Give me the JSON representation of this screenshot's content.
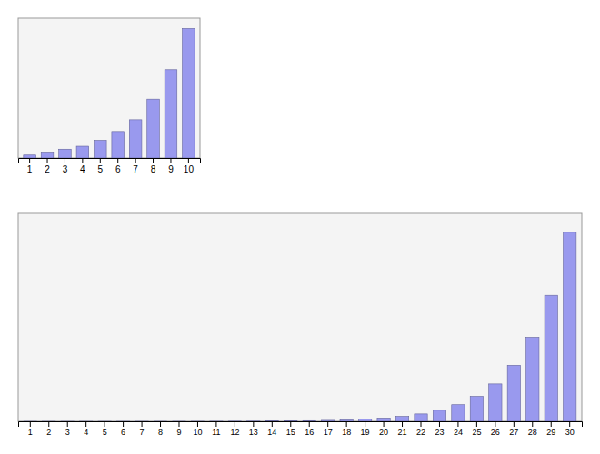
{
  "chart_data": [
    {
      "type": "bar",
      "categories": [
        "1",
        "2",
        "3",
        "4",
        "5",
        "6",
        "7",
        "8",
        "9",
        "10"
      ],
      "values": [
        1,
        2,
        3,
        4,
        6,
        9,
        13,
        20,
        30,
        44
      ],
      "color": "#9999ee",
      "ylim": [
        0,
        47.52
      ],
      "grid": false,
      "tick_labels": "x"
    },
    {
      "type": "bar",
      "categories": [
        "1",
        "2",
        "3",
        "4",
        "5",
        "6",
        "7",
        "8",
        "9",
        "10",
        "11",
        "12",
        "13",
        "14",
        "15",
        "16",
        "17",
        "18",
        "19",
        "20",
        "21",
        "22",
        "23",
        "24",
        "25",
        "26",
        "27",
        "28",
        "29",
        "30"
      ],
      "values": [
        1,
        2,
        3,
        4,
        6,
        9,
        13,
        20,
        30,
        44,
        66,
        99,
        148,
        222,
        333,
        499,
        748,
        1122,
        1683,
        2524,
        3786,
        5678,
        8517,
        12776,
        19164,
        28745,
        43118,
        64677,
        97016,
        145524
      ],
      "color": "#9999ee",
      "ylim": [
        0,
        160076.4
      ],
      "grid": false,
      "tick_labels": "x"
    }
  ]
}
